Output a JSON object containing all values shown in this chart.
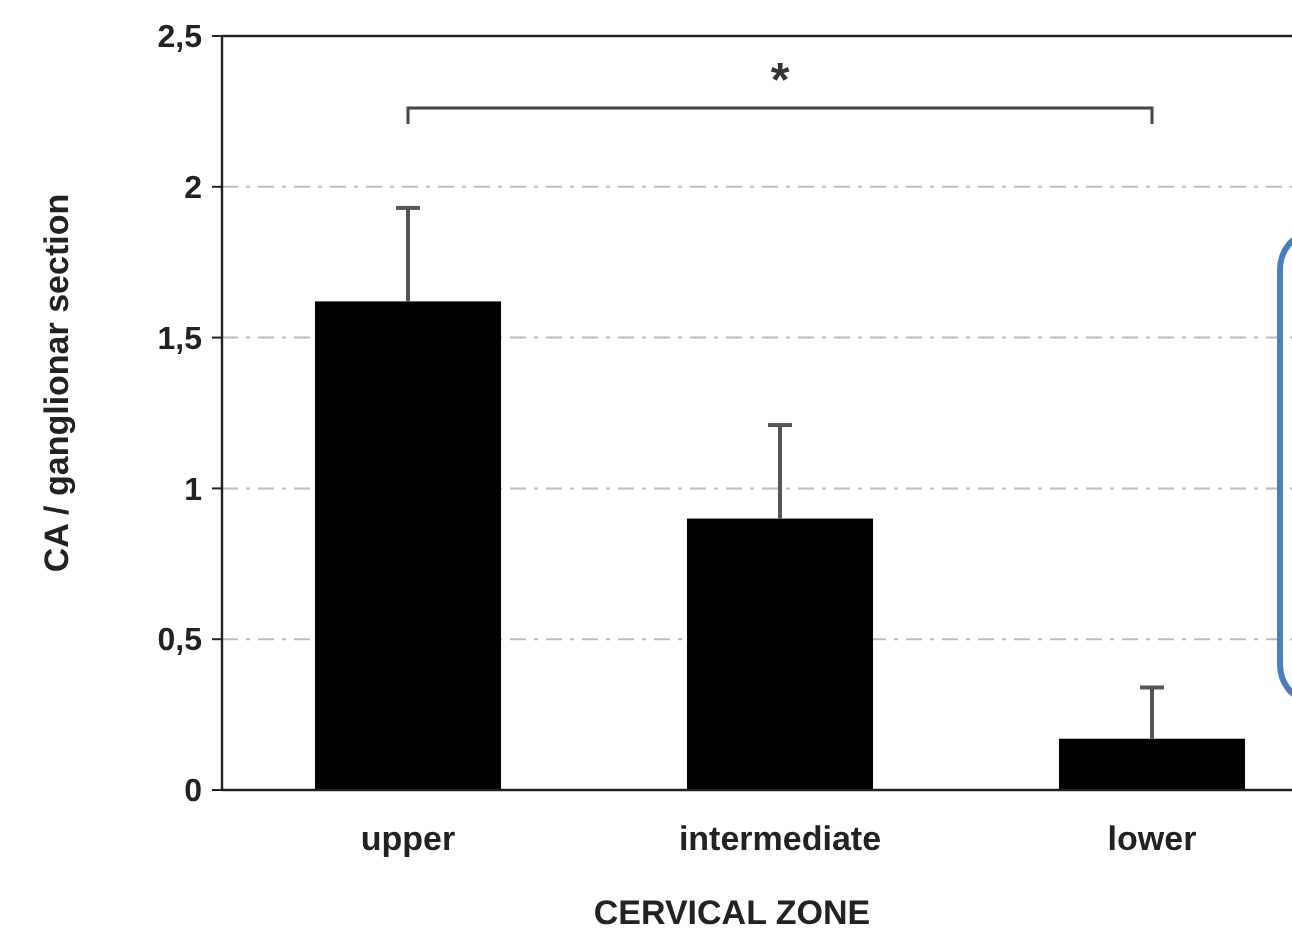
{
  "chart_data": {
    "type": "bar",
    "xlabel": "CERVICAL ZONE",
    "ylabel": "CA / ganglionar section",
    "categories": [
      "upper",
      "intermediate",
      "lower"
    ],
    "values": [
      1.62,
      0.9,
      0.17
    ],
    "color": "#000000",
    "errors": [
      [
        1.62,
        1.93
      ],
      [
        0.9,
        1.21
      ],
      [
        0.17,
        0.34
      ]
    ],
    "ylim": [
      0,
      2.5
    ],
    "yticks": [
      0,
      {
        "value": 0.5,
        "label": "0,5"
      },
      1,
      {
        "value": 1.5,
        "label": "1,5"
      },
      2,
      {
        "value": 2.5,
        "label": "2,5"
      }
    ],
    "grid": "y",
    "annotations": [
      "*"
    ]
  }
}
